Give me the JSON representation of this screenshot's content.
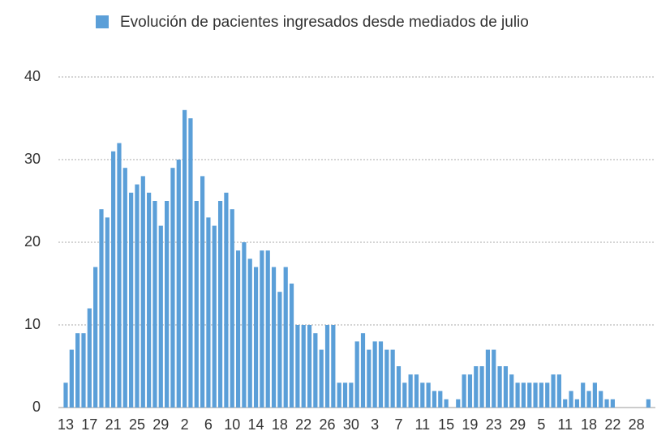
{
  "chart_data": {
    "type": "bar",
    "series": [
      {
        "name": "Evolución de pacientes ingresados desde mediados de julio",
        "color": "#5b9fd8",
        "values": [
          3,
          7,
          9,
          9,
          12,
          17,
          24,
          23,
          31,
          32,
          29,
          26,
          27,
          28,
          26,
          25,
          22,
          25,
          29,
          30,
          36,
          35,
          25,
          28,
          23,
          22,
          25,
          26,
          24,
          19,
          20,
          18,
          17,
          19,
          19,
          17,
          14,
          17,
          15,
          10,
          10,
          10,
          9,
          7,
          10,
          10,
          3,
          3,
          3,
          8,
          9,
          7,
          8,
          8,
          7,
          7,
          5,
          3,
          4,
          4,
          3,
          3,
          2,
          2,
          1,
          0,
          1,
          4,
          4,
          5,
          5,
          7,
          7,
          5,
          5,
          4,
          3,
          3,
          3,
          3,
          3,
          3,
          4,
          4,
          1,
          2,
          1,
          3,
          2,
          3,
          2,
          1,
          1,
          0,
          0,
          0,
          0,
          0,
          1
        ]
      }
    ],
    "categories": [
      "13",
      null,
      null,
      null,
      "17",
      null,
      null,
      null,
      "21",
      null,
      null,
      null,
      "25",
      null,
      null,
      null,
      "29",
      null,
      null,
      null,
      "2",
      null,
      null,
      null,
      "6",
      null,
      null,
      null,
      "10",
      null,
      null,
      null,
      "14",
      null,
      null,
      null,
      "18",
      null,
      null,
      null,
      "22",
      null,
      null,
      null,
      "26",
      null,
      null,
      null,
      "30",
      null,
      null,
      null,
      "3",
      null,
      null,
      null,
      "7",
      null,
      null,
      null,
      "11",
      null,
      null,
      null,
      "15",
      null,
      null,
      null,
      "19",
      null,
      null,
      null,
      "23",
      null,
      null,
      null,
      "29",
      null,
      null,
      null,
      "5",
      null,
      null,
      null,
      "11",
      null,
      null,
      null,
      "18",
      null,
      null,
      null,
      "22",
      null,
      null,
      null,
      "28",
      null,
      null
    ],
    "ylim": [
      0,
      40
    ],
    "yticks": [
      0,
      10,
      20,
      30,
      40
    ],
    "grid": true,
    "legend": "top"
  }
}
